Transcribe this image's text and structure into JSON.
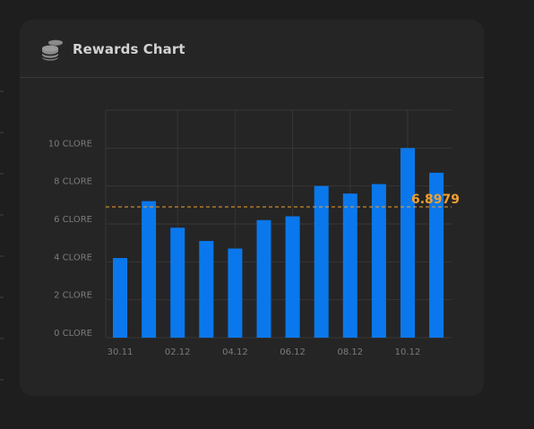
{
  "card": {
    "title": "Rewards Chart",
    "icon": "coins-icon"
  },
  "colors": {
    "bar": "#0a78ec",
    "reference": "#f0a030",
    "grid": "#363636"
  },
  "chart_data": {
    "type": "bar",
    "categories": [
      "30.11",
      "01.12",
      "02.12",
      "03.12",
      "04.12",
      "05.12",
      "06.12",
      "07.12",
      "08.12",
      "09.12",
      "10.12",
      "11.12"
    ],
    "x_tick_labels": [
      "30.11",
      "",
      "02.12",
      "",
      "04.12",
      "",
      "06.12",
      "",
      "08.12",
      "",
      "10.12",
      ""
    ],
    "values": [
      4.2,
      7.2,
      5.8,
      5.1,
      4.7,
      6.2,
      6.4,
      8.0,
      7.6,
      8.1,
      10.0,
      8.7
    ],
    "y_ticks": [
      0,
      2,
      4,
      6,
      8,
      10
    ],
    "y_tick_labels": [
      "0 CLORE",
      "2 CLORE",
      "4 CLORE",
      "6 CLORE",
      "8 CLORE",
      "10 CLORE"
    ],
    "ylim": [
      0,
      12
    ],
    "reference_line": {
      "value": 6.8979,
      "label": "6.8979"
    },
    "grid": true,
    "title": "",
    "xlabel": "",
    "ylabel": ""
  }
}
